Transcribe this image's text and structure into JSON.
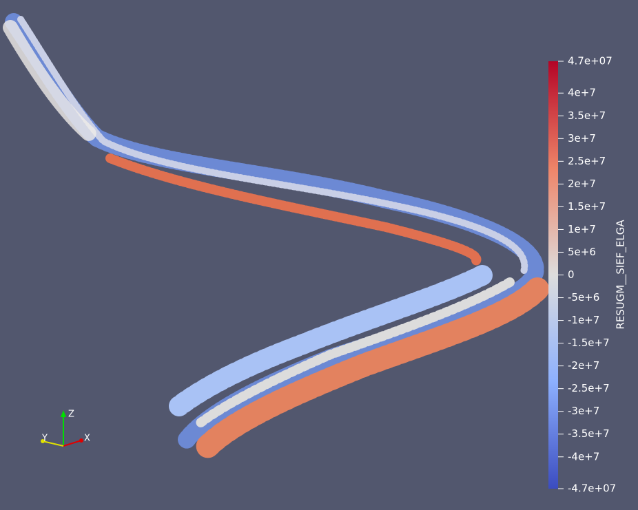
{
  "colorbar": {
    "title": "RESUGM__SIEF_ELGA",
    "range": [
      -47000000,
      47000000
    ],
    "ticks": [
      {
        "value": 47000000,
        "label": "4.7e+07"
      },
      {
        "value": 40000000,
        "label": "4e+7"
      },
      {
        "value": 35000000,
        "label": "3.5e+7"
      },
      {
        "value": 30000000,
        "label": "3e+7"
      },
      {
        "value": 25000000,
        "label": "2.5e+7"
      },
      {
        "value": 20000000,
        "label": "2e+7"
      },
      {
        "value": 15000000,
        "label": "1.5e+7"
      },
      {
        "value": 10000000,
        "label": "1e+7"
      },
      {
        "value": 5000000,
        "label": "5e+6"
      },
      0,
      {
        "value": -5000000,
        "label": "-5e+6"
      },
      {
        "value": -10000000,
        "label": "-1e+7"
      },
      {
        "value": -15000000,
        "label": "-1.5e+7"
      },
      {
        "value": -20000000,
        "label": "-2e+7"
      },
      {
        "value": -25000000,
        "label": "-2.5e+7"
      },
      {
        "value": -30000000,
        "label": "-3e+7"
      },
      {
        "value": -35000000,
        "label": "-3.5e+7"
      },
      {
        "value": -40000000,
        "label": "-4e+7"
      },
      {
        "value": -47000000,
        "label": "-4.7e+07"
      }
    ]
  },
  "orientation_axes": {
    "x": "X",
    "y": "Y",
    "z": "Z"
  }
}
